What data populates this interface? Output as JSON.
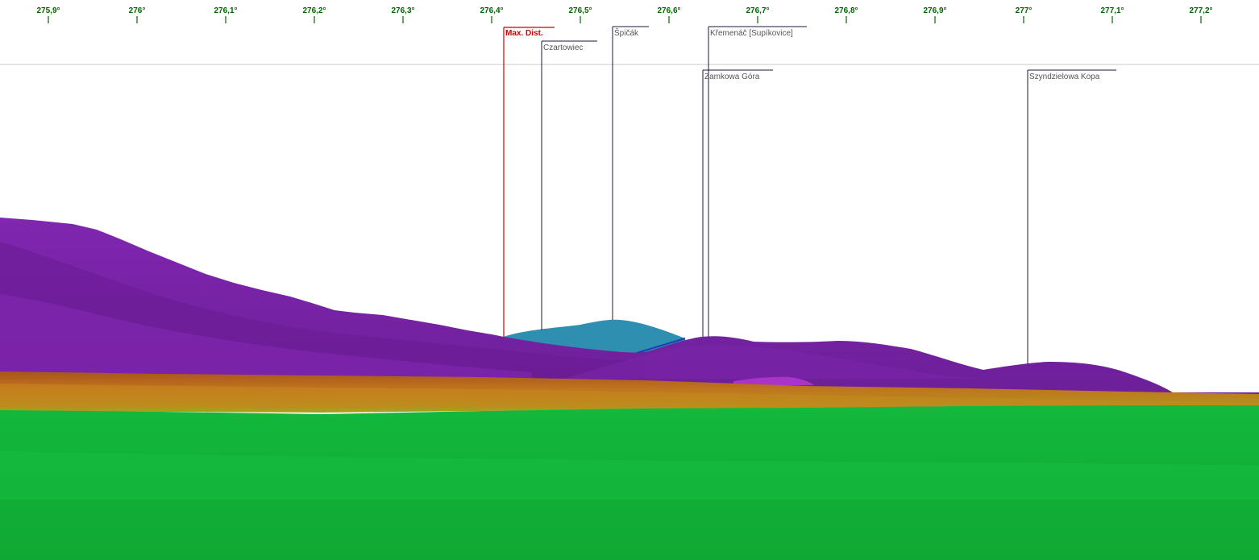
{
  "azimuth_scale": {
    "ticks": [
      "275,9°",
      "276°",
      "276,1°",
      "276,2°",
      "276,3°",
      "276,4°",
      "276,5°",
      "276,6°",
      "276,7°",
      "276,8°",
      "276,9°",
      "277°",
      "277,1°",
      "277,2°"
    ],
    "tick_color": "#006400"
  },
  "max_distance": {
    "label": "Max. Dist.",
    "color": "#cc0000"
  },
  "peaks": [
    {
      "id": "czartowiec",
      "label": "Czartowiec"
    },
    {
      "id": "spicak",
      "label": "Špičák"
    },
    {
      "id": "kremenac",
      "label": "Křemenáč [Supíkovice]"
    },
    {
      "id": "zamkowa-gora",
      "label": "Zamkowa Góra"
    },
    {
      "id": "szyndzielowa-kopa",
      "label": "Szyndzielowa Kopa"
    }
  ],
  "colors": {
    "peak_label_text": "#555555",
    "leader_line": "#1a1a3a",
    "horizon_line": "#c8c8c8",
    "far_ridge": "#2e8fb0",
    "mountains_purple": "#7d22a8",
    "mountains_purple_dark": "#6a1e94",
    "band_orange": "#b8651c",
    "band_olive": "#b08a1c",
    "ground_green": "#12b83a"
  }
}
